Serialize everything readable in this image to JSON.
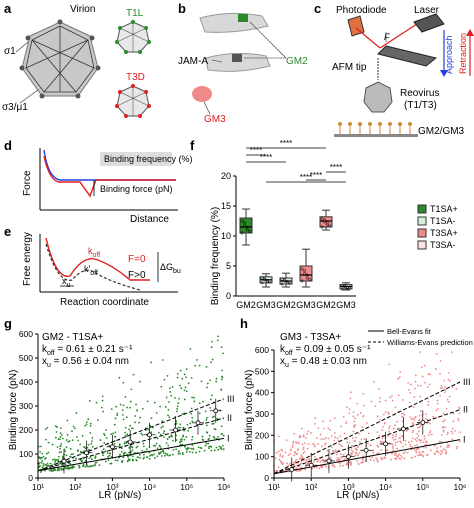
{
  "panels": {
    "a": {
      "letter": "a",
      "virion": "Virion",
      "sigma1": "σ1",
      "sigma3mu1": "σ3/μ1",
      "t1l": "T1L",
      "t3d": "T3D"
    },
    "b": {
      "letter": "b",
      "jam": "JAM-A",
      "gm2": "GM2",
      "gm3": "GM3"
    },
    "c": {
      "letter": "c",
      "photodiode": "Photodiode",
      "laser": "Laser",
      "afm_tip": "AFM tip",
      "reovirus": "Reovirus",
      "t1t3": "(T1/T3)",
      "gm2gm3": "GM2/GM3",
      "approach": "Approach",
      "retraction": "Retraction",
      "f": "F"
    },
    "d": {
      "letter": "d",
      "force": "Force",
      "distance": "Distance",
      "binding_frequency": "Binding frequency (%)",
      "binding_force": "Binding force (pN)"
    },
    "e": {
      "letter": "e",
      "free_energy": "Free energy",
      "reaction_coord": "Reaction coordinate",
      "koff": "k",
      "koff_sub": "off",
      "k_prime": "k'",
      "k_prime_sub": "off",
      "dg": "ΔG",
      "dg_sub": "bu",
      "f0": "F=0",
      "fgt0": "F>0",
      "xu": "x",
      "xu_sub": "u"
    }
  },
  "colors": {
    "green": "#2a8a2a",
    "green_light": "#d8f0d8",
    "pink": "#f08a8a",
    "pink_light": "#fbe3e3",
    "red": "#e02020",
    "blue": "#2040e0"
  },
  "chart_data": [
    {
      "id": "f",
      "letter": "f",
      "type": "box",
      "ylabel": "Binding frequency (%)",
      "ylim": [
        0,
        20
      ],
      "yticks": [
        0,
        5,
        10,
        15,
        20
      ],
      "categories": [
        "GM2",
        "GM3",
        "GM2",
        "GM3",
        "GM2",
        "GM3"
      ],
      "boxes": [
        {
          "q1": 10.5,
          "median": 11.5,
          "q3": 13,
          "min": 8.5,
          "max": 14.5,
          "fill": "#2a8a2a"
        },
        {
          "q1": 2.2,
          "median": 2.7,
          "q3": 3.2,
          "min": 1.5,
          "max": 3.7,
          "fill": "#d8f0d8"
        },
        {
          "q1": 2.0,
          "median": 2.5,
          "q3": 3.0,
          "min": 1.5,
          "max": 3.8,
          "fill": "#d8f0d8"
        },
        {
          "q1": 2.5,
          "median": 3.5,
          "q3": 5.0,
          "min": 1.5,
          "max": 7.8,
          "fill": "#f08a8a"
        },
        {
          "q1": 11.5,
          "median": 12.5,
          "q3": 13.2,
          "min": 11,
          "max": 14.3,
          "fill": "#f08a8a"
        },
        {
          "q1": 1.2,
          "median": 1.6,
          "q3": 1.9,
          "min": 1,
          "max": 2.2,
          "fill": "#fbe3e3"
        }
      ],
      "significance": [
        {
          "pair": [
            0,
            1
          ],
          "label": "****"
        },
        {
          "pair": [
            0,
            2
          ],
          "label": "****"
        },
        {
          "pair": [
            0,
            4
          ],
          "label": "****"
        },
        {
          "pair": [
            1,
            5
          ],
          "label": "****"
        },
        {
          "pair": [
            3,
            4
          ],
          "label": "****"
        },
        {
          "pair": [
            4,
            5
          ],
          "label": "****"
        }
      ],
      "legend": [
        {
          "label": "T1SA+",
          "color": "#2a8a2a"
        },
        {
          "label": "T1SA-",
          "color": "#d8f0d8"
        },
        {
          "label": "T3SA+",
          "color": "#f08a8a"
        },
        {
          "label": "T3SA-",
          "color": "#fbe3e3"
        }
      ]
    },
    {
      "id": "g",
      "letter": "g",
      "type": "scatter",
      "title": "GM2 - T1SA+",
      "koff_label": "k",
      "koff_sub": "off",
      "koff_value": " = 0.61 ± 0.21 s⁻¹",
      "xu_label": "x",
      "xu_sub": "u",
      "xu_value": " = 0.56 ± 0.04 nm",
      "xlabel": "LR (pN/s)",
      "ylabel": "Binding force (pN)",
      "xscale": "log",
      "xlim": [
        10,
        1000000
      ],
      "ylim": [
        0,
        600
      ],
      "yticks": [
        0,
        100,
        200,
        300,
        400,
        500,
        600
      ],
      "xticks": [
        "10¹",
        "10²",
        "10³",
        "10⁴",
        "10⁵",
        "10⁶"
      ],
      "color": "#2a8a2a",
      "fit_labels": [
        "III",
        "II",
        "I"
      ],
      "fit_lines": [
        {
          "name": "I",
          "points": [
            [
              10,
              30
            ],
            [
              1000000,
              165
            ]
          ]
        },
        {
          "name": "II",
          "points": [
            [
              10,
              30
            ],
            [
              1000000,
              250
            ]
          ]
        },
        {
          "name": "III",
          "points": [
            [
              10,
              30
            ],
            [
              1000000,
              330
            ]
          ]
        }
      ],
      "means": [
        [
          50,
          70
        ],
        [
          200,
          105
        ],
        [
          1000,
          130
        ],
        [
          3000,
          150
        ],
        [
          10000,
          180
        ],
        [
          50000,
          200
        ],
        [
          200000,
          230
        ],
        [
          600000,
          280
        ]
      ]
    },
    {
      "id": "h",
      "letter": "h",
      "type": "scatter",
      "title": "GM3 - T3SA+",
      "koff_label": "k",
      "koff_sub": "off",
      "koff_value": " = 0.09 ± 0.05 s⁻¹",
      "xu_label": "x",
      "xu_sub": "u",
      "xu_value": " = 0.48 ± 0.03 nm",
      "xlabel": "LR (pN/s)",
      "ylabel": "Binding force (pN)",
      "xscale": "log",
      "xlim": [
        10,
        1000000
      ],
      "ylim": [
        0,
        600
      ],
      "yticks": [
        0,
        100,
        200,
        300,
        400,
        500,
        600
      ],
      "xticks": [
        "10¹",
        "10²",
        "10³",
        "10⁴",
        "10⁵",
        "10⁶"
      ],
      "color": "#f08a8a",
      "legend": [
        {
          "label": "Bell-Evans fit",
          "style": "solid"
        },
        {
          "label": "Williams-Evans prediction",
          "style": "dashed"
        }
      ],
      "fit_labels": [
        "III",
        "II",
        "I"
      ],
      "fit_lines": [
        {
          "name": "I",
          "points": [
            [
              10,
              20
            ],
            [
              1000000,
              180
            ]
          ]
        },
        {
          "name": "II",
          "points": [
            [
              10,
              20
            ],
            [
              1000000,
              320
            ]
          ]
        },
        {
          "name": "III",
          "points": [
            [
              10,
              20
            ],
            [
              1000000,
              450
            ]
          ]
        }
      ],
      "means": [
        [
          30,
          40
        ],
        [
          100,
          60
        ],
        [
          300,
          80
        ],
        [
          1000,
          100
        ],
        [
          3000,
          130
        ],
        [
          10000,
          160
        ],
        [
          30000,
          230
        ],
        [
          100000,
          260
        ]
      ]
    }
  ]
}
